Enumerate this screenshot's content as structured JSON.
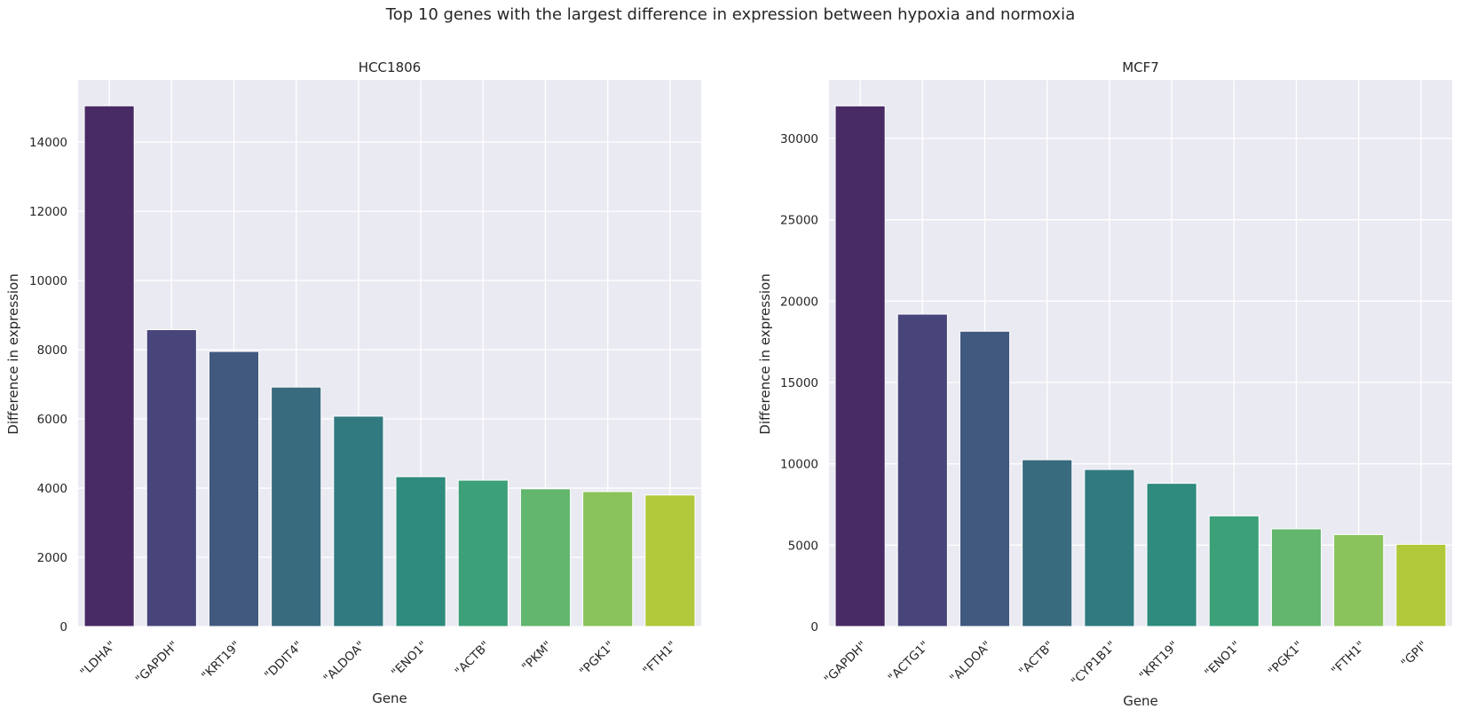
{
  "suptitle": "Top 10 genes with the largest difference in expression between hypoxia and normoxia",
  "chart_data": [
    {
      "type": "bar",
      "title": "HCC1806",
      "xlabel": "Gene",
      "ylabel": "Difference in expression",
      "categories": [
        "\"LDHA\"",
        "\"GAPDH\"",
        "\"KRT19\"",
        "\"DDIT4\"",
        "\"ALDOA\"",
        "\"ENO1\"",
        "\"ACTB\"",
        "\"PKM\"",
        "\"PGK1\"",
        "\"FTH1\""
      ],
      "values": [
        15050,
        8580,
        7950,
        6920,
        6080,
        4330,
        4230,
        3980,
        3900,
        3800
      ],
      "ylim": [
        0,
        15800
      ],
      "yticks": [
        0,
        2000,
        4000,
        6000,
        8000,
        10000,
        12000,
        14000
      ],
      "grid": true,
      "colors": [
        "#482a65",
        "#47457a",
        "#42597f",
        "#396b7e",
        "#317a80",
        "#2e8b7d",
        "#3ca078",
        "#62b66e",
        "#8ac35c",
        "#b0c83a"
      ]
    },
    {
      "type": "bar",
      "title": "MCF7",
      "xlabel": "Gene",
      "ylabel": "Difference in expression",
      "categories": [
        "\"GAPDH\"",
        "\"ACTG1\"",
        "\"ALDOA\"",
        "\"ACTB\"",
        "\"CYP1B1\"",
        "\"KRT19\"",
        "\"ENO1\"",
        "\"PGK1\"",
        "\"FTH1\"",
        "\"GPI\""
      ],
      "values": [
        32000,
        19200,
        18150,
        10250,
        9650,
        8800,
        6800,
        6000,
        5650,
        5050
      ],
      "ylim": [
        0,
        33600
      ],
      "yticks": [
        0,
        5000,
        10000,
        15000,
        20000,
        25000,
        30000
      ],
      "grid": true,
      "colors": [
        "#482a65",
        "#47457a",
        "#42597f",
        "#396b7e",
        "#317a80",
        "#2e8b7d",
        "#3ca078",
        "#62b66e",
        "#8ac35c",
        "#b0c83a"
      ]
    }
  ]
}
